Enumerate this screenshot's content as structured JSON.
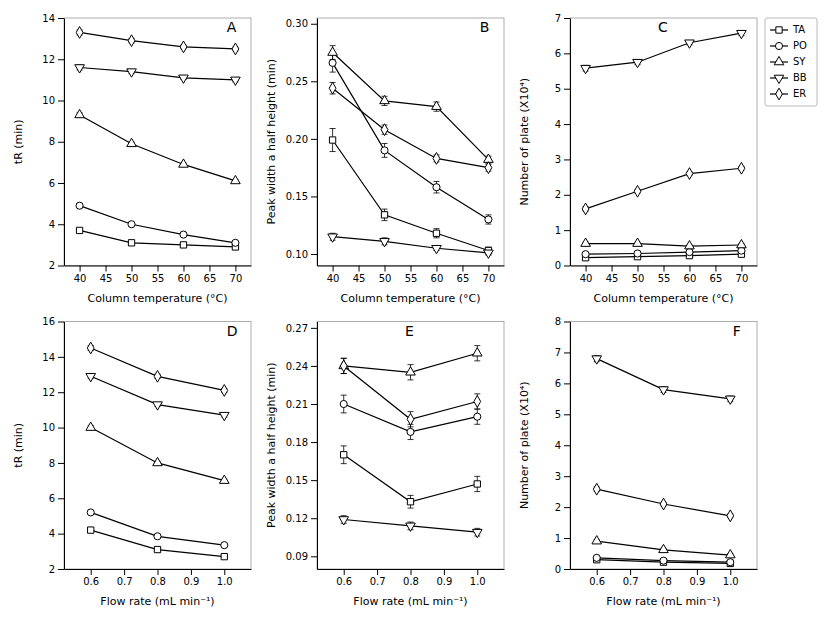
{
  "chart_data": [
    {
      "type": "line",
      "xlabel": "Column temperature (°C)",
      "ylabel": "tR (min)",
      "annotations": [
        "A"
      ],
      "x": [
        40,
        50,
        60,
        70
      ],
      "xlim": [
        37,
        73
      ],
      "xticks": [
        40,
        45,
        50,
        55,
        60,
        65,
        70
      ],
      "ylim": [
        2,
        14
      ],
      "yticks": [
        2,
        4,
        6,
        8,
        10,
        12,
        14
      ],
      "series": [
        {
          "color": "black",
          "marker": "square",
          "values": [
            3.7,
            3.1,
            3.0,
            2.9
          ],
          "errors": [
            0.05,
            0.04,
            0.04,
            0.04
          ]
        },
        {
          "color": "black",
          "marker": "circle",
          "values": [
            4.9,
            4.0,
            3.5,
            3.1
          ],
          "errors": [
            0.06,
            0.05,
            0.04,
            0.04
          ]
        },
        {
          "color": "black",
          "marker": "triangle-up",
          "values": [
            9.3,
            7.9,
            6.9,
            6.1
          ],
          "errors": [
            0.1,
            0.08,
            0.07,
            0.06
          ]
        },
        {
          "color": "black",
          "marker": "triangle-down",
          "values": [
            11.6,
            11.4,
            11.1,
            11.0
          ],
          "errors": [
            0.12,
            0.1,
            0.08,
            0.1
          ]
        },
        {
          "color": "black",
          "marker": "diamond",
          "values": [
            13.3,
            12.9,
            12.6,
            12.5
          ],
          "errors": [
            0.12,
            0.1,
            0.09,
            0.09
          ]
        }
      ]
    },
    {
      "type": "line",
      "xlabel": "Column temperature (°C)",
      "ylabel": "Peak width a half height (min)",
      "annotations": [
        "B"
      ],
      "x": [
        40,
        50,
        60,
        70
      ],
      "xlim": [
        37,
        73
      ],
      "xticks": [
        40,
        45,
        50,
        55,
        60,
        65,
        70
      ],
      "ylim": [
        0.09,
        0.305
      ],
      "yticks": [
        {
          "value": 0.1,
          "label": "0.10"
        },
        0.15,
        {
          "value": 0.2,
          "label": "0.20"
        },
        0.25,
        {
          "value": 0.3,
          "label": "0.30"
        }
      ],
      "series": [
        {
          "color": "black",
          "marker": "square",
          "values": [
            0.199,
            0.134,
            0.118,
            0.103
          ],
          "errors": [
            0.01,
            0.005,
            0.004,
            0.003
          ]
        },
        {
          "color": "black",
          "marker": "circle",
          "values": [
            0.266,
            0.19,
            0.158,
            0.13
          ],
          "errors": [
            0.008,
            0.006,
            0.005,
            0.004
          ]
        },
        {
          "color": "black",
          "marker": "triangle-up",
          "values": [
            0.275,
            0.233,
            0.228,
            0.182
          ],
          "errors": [
            0.006,
            0.004,
            0.004,
            0.003
          ]
        },
        {
          "color": "black",
          "marker": "triangle-down",
          "values": [
            0.115,
            0.111,
            0.105,
            0.101
          ],
          "errors": [
            0.003,
            0.003,
            0.002,
            0.002
          ]
        },
        {
          "color": "black",
          "marker": "diamond",
          "values": [
            0.244,
            0.208,
            0.183,
            0.175
          ],
          "errors": [
            0.005,
            0.004,
            0.003,
            0.003
          ]
        }
      ]
    },
    {
      "type": "line",
      "xlabel": "Column temperature (°C)",
      "ylabel": "Number of plate (X10⁴)",
      "annotations": [
        "C"
      ],
      "x": [
        40,
        50,
        60,
        70
      ],
      "xlim": [
        37,
        73
      ],
      "xticks": [
        40,
        45,
        50,
        55,
        60,
        65,
        70
      ],
      "ylim": [
        0,
        7
      ],
      "yticks": [
        0,
        1,
        2,
        3,
        4,
        5,
        6,
        7
      ],
      "legend": "upper right",
      "series": [
        {
          "name": "TA",
          "color": "black",
          "marker": "square",
          "values": [
            0.22,
            0.25,
            0.28,
            0.32
          ],
          "errors": [
            0.03,
            0.03,
            0.03,
            0.03
          ]
        },
        {
          "name": "PO",
          "color": "black",
          "marker": "circle",
          "values": [
            0.32,
            0.34,
            0.38,
            0.42
          ],
          "errors": [
            0.03,
            0.03,
            0.03,
            0.03
          ]
        },
        {
          "name": "SY",
          "color": "black",
          "marker": "triangle-up",
          "values": [
            0.62,
            0.62,
            0.55,
            0.58
          ],
          "errors": [
            0.04,
            0.04,
            0.03,
            0.04
          ]
        },
        {
          "name": "BB",
          "color": "black",
          "marker": "triangle-down",
          "values": [
            5.58,
            5.75,
            6.3,
            6.57
          ],
          "errors": [
            0.08,
            0.07,
            0.06,
            0.07
          ]
        },
        {
          "name": "ER",
          "color": "black",
          "marker": "diamond",
          "values": [
            1.6,
            2.1,
            2.6,
            2.75
          ],
          "errors": [
            0.06,
            0.05,
            0.05,
            0.05
          ]
        }
      ]
    },
    {
      "type": "line",
      "xlabel": "Flow rate (mL min⁻¹)",
      "ylabel": "tR (min)",
      "annotations": [
        "D"
      ],
      "x": [
        0.6,
        0.8,
        1.0
      ],
      "xlim": [
        0.52,
        1.08
      ],
      "xticks": [
        0.6,
        0.7,
        0.8,
        0.9,
        {
          "value": 1,
          "label": "1.0"
        }
      ],
      "ylim": [
        2,
        16
      ],
      "yticks": [
        2,
        4,
        6,
        8,
        10,
        12,
        14,
        16
      ],
      "series": [
        {
          "color": "black",
          "marker": "square",
          "values": [
            4.2,
            3.1,
            2.7
          ],
          "errors": [
            0.06,
            0.05,
            0.04
          ]
        },
        {
          "color": "black",
          "marker": "circle",
          "values": [
            5.2,
            3.85,
            3.35
          ],
          "errors": [
            0.07,
            0.06,
            0.05
          ]
        },
        {
          "color": "black",
          "marker": "triangle-up",
          "values": [
            10.0,
            8.0,
            7.0
          ],
          "errors": [
            0.12,
            0.1,
            0.08
          ]
        },
        {
          "color": "black",
          "marker": "triangle-down",
          "values": [
            12.9,
            11.3,
            10.7
          ],
          "errors": [
            0.13,
            0.11,
            0.1
          ]
        },
        {
          "color": "black",
          "marker": "diamond",
          "values": [
            14.5,
            12.9,
            12.1
          ],
          "errors": [
            0.14,
            0.12,
            0.11
          ]
        }
      ]
    },
    {
      "type": "line",
      "xlabel": "Flow rate (mL min⁻¹)",
      "ylabel": "Peak width a half height (min)",
      "annotations": [
        "E"
      ],
      "x": [
        0.6,
        0.8,
        1.0
      ],
      "xlim": [
        0.52,
        1.08
      ],
      "xticks": [
        0.6,
        0.7,
        0.8,
        0.9,
        {
          "value": 1,
          "label": "1.0"
        }
      ],
      "ylim": [
        0.08,
        0.275
      ],
      "yticks": [
        0.09,
        0.12,
        0.15,
        0.18,
        0.21,
        0.24,
        0.27
      ],
      "series": [
        {
          "color": "black",
          "marker": "square",
          "values": [
            0.17,
            0.133,
            0.147
          ],
          "errors": [
            0.007,
            0.005,
            0.006
          ]
        },
        {
          "color": "black",
          "marker": "circle",
          "values": [
            0.21,
            0.188,
            0.2
          ],
          "errors": [
            0.007,
            0.006,
            0.006
          ]
        },
        {
          "color": "black",
          "marker": "triangle-up",
          "values": [
            0.24,
            0.235,
            0.25
          ],
          "errors": [
            0.006,
            0.006,
            0.006
          ]
        },
        {
          "color": "black",
          "marker": "triangle-down",
          "values": [
            0.119,
            0.114,
            0.109
          ],
          "errors": [
            0.003,
            0.003,
            0.003
          ]
        },
        {
          "color": "black",
          "marker": "diamond",
          "values": [
            0.24,
            0.198,
            0.212
          ],
          "errors": [
            0.006,
            0.006,
            0.006
          ]
        }
      ]
    },
    {
      "type": "line",
      "xlabel": "Flow rate (mL min⁻¹)",
      "ylabel": "Number of plate (X10⁴)",
      "annotations": [
        "F"
      ],
      "x": [
        0.6,
        0.8,
        1.0
      ],
      "xlim": [
        0.52,
        1.08
      ],
      "xticks": [
        0.6,
        0.7,
        0.8,
        0.9,
        {
          "value": 1,
          "label": "1.0"
        }
      ],
      "ylim": [
        0,
        8
      ],
      "yticks": [
        0,
        1,
        2,
        3,
        4,
        5,
        6,
        7,
        8
      ],
      "series": [
        {
          "color": "black",
          "marker": "square",
          "values": [
            0.3,
            0.22,
            0.18
          ],
          "errors": [
            0.03,
            0.03,
            0.03
          ]
        },
        {
          "color": "black",
          "marker": "circle",
          "values": [
            0.36,
            0.27,
            0.22
          ],
          "errors": [
            0.04,
            0.04,
            0.04
          ]
        },
        {
          "color": "black",
          "marker": "triangle-up",
          "values": [
            0.9,
            0.62,
            0.45
          ],
          "errors": [
            0.05,
            0.05,
            0.05
          ]
        },
        {
          "color": "black",
          "marker": "triangle-down",
          "values": [
            6.8,
            5.8,
            5.5
          ],
          "errors": [
            0.1,
            0.09,
            0.09
          ]
        },
        {
          "color": "black",
          "marker": "diamond",
          "values": [
            2.58,
            2.1,
            1.72
          ],
          "errors": [
            0.07,
            0.06,
            0.06
          ]
        }
      ]
    }
  ]
}
